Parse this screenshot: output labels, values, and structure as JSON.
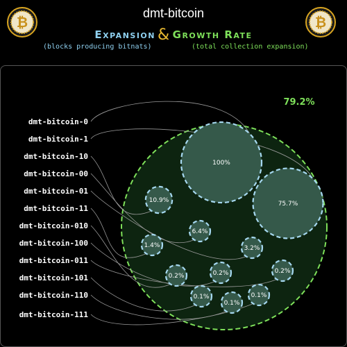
{
  "header": {
    "title": "dmt-bitcoin",
    "subtitle_left": "Expansion",
    "subtitle_amp": "&",
    "subtitle_right": "Growth Rate",
    "note_left": "(blocks producing bitnats)",
    "note_right": "(total collection expansion)",
    "logo_symbol": "₿"
  },
  "colors": {
    "background": "#000000",
    "outer_fill": "#0d2410",
    "outer_stroke": "#7ee05a",
    "bubble_fill": "#35594a",
    "bubble_stroke": "#a6d8f0",
    "total_label": "#7ee05a",
    "leader_line": "#9a9a9a",
    "coin_gold": "#d9a520"
  },
  "chart_data": {
    "type": "bubble",
    "total_label": "79.2%",
    "total_value": 79.2,
    "series": [
      {
        "name": "dmt-bitcoin-0",
        "value": 100,
        "label": "100%"
      },
      {
        "name": "dmt-bitcoin-1",
        "value": 75.7,
        "label": "75.7%"
      },
      {
        "name": "dmt-bitcoin-10",
        "value": 10.9,
        "label": "10.9%"
      },
      {
        "name": "dmt-bitcoin-00",
        "value": 6.4,
        "label": "6.4%"
      },
      {
        "name": "dmt-bitcoin-01",
        "value": 3.2,
        "label": "3.2%"
      },
      {
        "name": "dmt-bitcoin-11",
        "value": 1.4,
        "label": "1.4%"
      },
      {
        "name": "dmt-bitcoin-010",
        "value": 0.2,
        "label": "0.2%"
      },
      {
        "name": "dmt-bitcoin-100",
        "value": 0.2,
        "label": "0.2%"
      },
      {
        "name": "dmt-bitcoin-011",
        "value": 0.2,
        "label": "0.2%"
      },
      {
        "name": "dmt-bitcoin-101",
        "value": 0.1,
        "label": "0.1%"
      },
      {
        "name": "dmt-bitcoin-110",
        "value": 0.1,
        "label": "0.1%"
      },
      {
        "name": "dmt-bitcoin-111",
        "value": 0.1,
        "label": "0.1%"
      }
    ]
  }
}
